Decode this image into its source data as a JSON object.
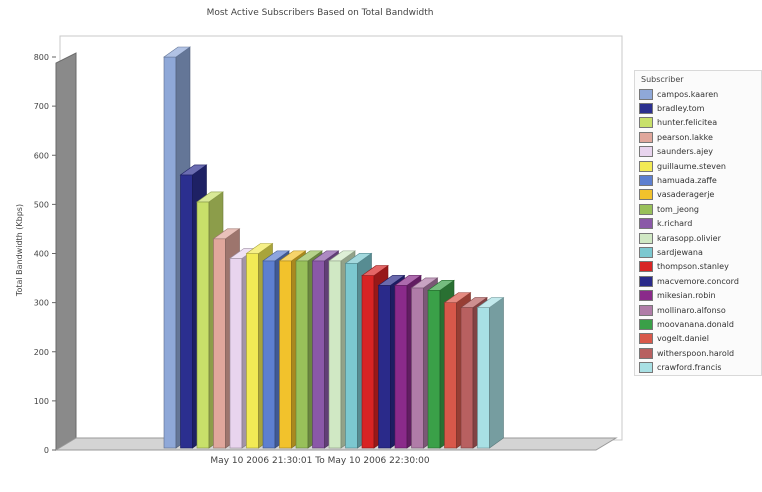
{
  "chart_data": {
    "type": "bar",
    "title": "Most Active Subscribers Based on Total Bandwidth",
    "subtitle": "May 10 2006 21:30:01 To May 10 2006 22:30:00",
    "xlabel": "",
    "ylabel": "Total Bandwidth (Kbps)",
    "ylim": [
      0,
      800
    ],
    "yticks": [
      0,
      100,
      200,
      300,
      400,
      500,
      600,
      700,
      800
    ],
    "grid": false,
    "legend_title": "Subscriber",
    "legend_position": "right",
    "series": [
      {
        "name": "campos.kaaren",
        "value": 800,
        "color": "#8fa8d8"
      },
      {
        "name": "bradley.tom",
        "value": 560,
        "color": "#2b2f8f"
      },
      {
        "name": "hunter.felicitea",
        "value": 505,
        "color": "#c8e06a"
      },
      {
        "name": "pearson.lakke",
        "value": 430,
        "color": "#e0a79c"
      },
      {
        "name": "saunders.ajey",
        "value": 390,
        "color": "#e8d4ee"
      },
      {
        "name": "guillaume.steven",
        "value": 400,
        "color": "#f2ea55"
      },
      {
        "name": "hamuada.zaffe",
        "value": 385,
        "color": "#5d7fd0"
      },
      {
        "name": "vasaderagerje",
        "value": 385,
        "color": "#f2c22c"
      },
      {
        "name": "tom_jeong",
        "value": 385,
        "color": "#98c05a"
      },
      {
        "name": "k.richard",
        "value": 385,
        "color": "#8a58a8"
      },
      {
        "name": "karasopp.olivier",
        "value": 385,
        "color": "#d0e8c4"
      },
      {
        "name": "sardjewana",
        "value": 380,
        "color": "#7cc8d0"
      },
      {
        "name": "thompson.stanley",
        "value": 355,
        "color": "#d82424"
      },
      {
        "name": "macvemore.concord",
        "value": 335,
        "color": "#2a2a8a"
      },
      {
        "name": "mikesian.robin",
        "value": 335,
        "color": "#8a2a8a"
      },
      {
        "name": "mollinaro.alfonso",
        "value": 330,
        "color": "#b07ca8"
      },
      {
        "name": "moovanana.donald",
        "value": 325,
        "color": "#3aa048"
      },
      {
        "name": "vogelt.daniel",
        "value": 300,
        "color": "#d8584a"
      },
      {
        "name": "witherspoon.harold",
        "value": 290,
        "color": "#b86060"
      },
      {
        "name": "crawford.francis",
        "value": 290,
        "color": "#a8e0e4"
      }
    ]
  }
}
